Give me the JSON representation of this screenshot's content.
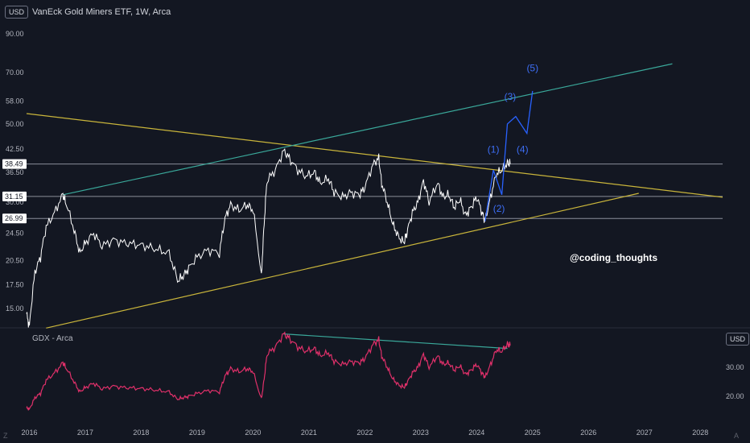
{
  "header": {
    "title": "VanEck Gold Miners ETF, 1W, Arca",
    "currency": "USD"
  },
  "sub_pane": {
    "title": "GDX - Arca",
    "currency": "USD"
  },
  "watermark": "@coding_thoughts",
  "corner_left": "Z",
  "corner_right": "A",
  "colors": {
    "price_line": "#ffffff",
    "yellow": "#c9b53b",
    "teal": "#3aa89a",
    "wave": "#2962ff",
    "sub_line": "#e0306a",
    "hline": "#8a8e99"
  },
  "chart_data": [
    {
      "type": "line",
      "name": "main",
      "title": "VanEck Gold Miners ETF, 1W, Arca",
      "xlabel": "",
      "ylabel": "USD",
      "x_ticks": [
        "2016",
        "2017",
        "2018",
        "2019",
        "2020",
        "2021",
        "2022",
        "2023",
        "2024",
        "2025",
        "2026",
        "2027",
        "2028"
      ],
      "y_scale": "log",
      "y_ticks": [
        "90.00",
        "70.00",
        "58.00",
        "50.00",
        "42.50",
        "36.50",
        "30.00",
        "24.50",
        "20.50",
        "17.50",
        "15.00"
      ],
      "ylim": [
        13.0,
        100
      ],
      "price_labels": [
        "38.49",
        "31.15",
        "26.99"
      ],
      "series_price": {
        "x": [
          2015.95,
          2016.0,
          2016.1,
          2016.2,
          2016.3,
          2016.45,
          2016.6,
          2016.65,
          2016.8,
          2016.9,
          2017.0,
          2017.15,
          2017.3,
          2017.5,
          2017.7,
          2017.9,
          2018.1,
          2018.3,
          2018.5,
          2018.65,
          2018.75,
          2018.85,
          2019.0,
          2019.2,
          2019.4,
          2019.5,
          2019.6,
          2019.75,
          2019.9,
          2020.0,
          2020.15,
          2020.2,
          2020.25,
          2020.4,
          2020.55,
          2020.65,
          2020.8,
          2020.95,
          2021.1,
          2021.2,
          2021.35,
          2021.45,
          2021.6,
          2021.75,
          2021.9,
          2022.0,
          2022.15,
          2022.25,
          2022.3,
          2022.4,
          2022.5,
          2022.6,
          2022.7,
          2022.75,
          2022.85,
          2022.95,
          2023.05,
          2023.15,
          2023.3,
          2023.4,
          2023.5,
          2023.6,
          2023.7,
          2023.8,
          2023.9,
          2024.0,
          2024.1,
          2024.15,
          2024.25,
          2024.35,
          2024.45,
          2024.55,
          2024.6
        ],
        "y": [
          14.5,
          13.3,
          19.0,
          21.0,
          25.5,
          28.0,
          31.5,
          30.0,
          25.0,
          21.5,
          23.0,
          24.5,
          22.5,
          23.5,
          23.0,
          22.8,
          22.5,
          22.0,
          21.5,
          18.0,
          18.5,
          19.5,
          21.0,
          22.0,
          21.5,
          27.0,
          29.5,
          28.5,
          29.5,
          28.5,
          18.3,
          26.0,
          34.5,
          37.0,
          42.0,
          40.0,
          37.0,
          35.5,
          36.5,
          34.0,
          35.0,
          32.0,
          31.0,
          32.0,
          31.5,
          33.0,
          38.5,
          40.0,
          34.0,
          30.0,
          26.0,
          24.0,
          23.0,
          24.5,
          28.0,
          30.0,
          34.5,
          30.0,
          34.0,
          31.0,
          31.5,
          29.0,
          30.5,
          27.5,
          29.0,
          31.0,
          28.0,
          26.5,
          31.0,
          36.0,
          37.0,
          38.8,
          38.5
        ]
      },
      "series_wave": {
        "labels": [
          "(1)",
          "(2)",
          "(3)",
          "(4)",
          "(5)"
        ],
        "x": [
          2024.15,
          2024.3,
          2024.45,
          2024.55,
          2024.7,
          2024.9,
          2025.0
        ],
        "y": [
          26.5,
          37.0,
          31.5,
          50.0,
          52.5,
          47.0,
          62.0
        ]
      },
      "levels": [
        38.49,
        31.15,
        26.99
      ],
      "trendlines": [
        {
          "color": "yellow",
          "x": [
            2015.95,
            2028.4
          ],
          "y": [
            53.5,
            31.0
          ]
        },
        {
          "color": "yellow",
          "x": [
            2016.3,
            2026.9
          ],
          "y": [
            13.2,
            31.8
          ]
        },
        {
          "color": "teal",
          "x": [
            2016.6,
            2027.5
          ],
          "y": [
            31.5,
            74.0
          ]
        }
      ]
    },
    {
      "type": "line",
      "name": "sub",
      "title": "GDX - Arca",
      "xlabel": "",
      "ylabel": "USD",
      "y_ticks": [
        "30.00",
        "20.00"
      ],
      "ylim": [
        14.0,
        44.0
      ],
      "series_sub": {
        "x": [
          2015.95,
          2016.0,
          2016.1,
          2016.2,
          2016.3,
          2016.45,
          2016.6,
          2016.65,
          2016.8,
          2016.9,
          2017.0,
          2017.15,
          2017.3,
          2017.5,
          2017.7,
          2017.9,
          2018.1,
          2018.3,
          2018.5,
          2018.65,
          2018.75,
          2018.85,
          2019.0,
          2019.2,
          2019.4,
          2019.5,
          2019.6,
          2019.75,
          2019.9,
          2020.0,
          2020.15,
          2020.2,
          2020.25,
          2020.4,
          2020.55,
          2020.65,
          2020.8,
          2020.95,
          2021.1,
          2021.2,
          2021.35,
          2021.45,
          2021.6,
          2021.75,
          2021.9,
          2022.0,
          2022.15,
          2022.25,
          2022.3,
          2022.4,
          2022.5,
          2022.6,
          2022.7,
          2022.75,
          2022.85,
          2022.95,
          2023.05,
          2023.15,
          2023.3,
          2023.4,
          2023.5,
          2023.6,
          2023.7,
          2023.8,
          2023.9,
          2024.0,
          2024.1,
          2024.15,
          2024.25,
          2024.35,
          2024.45,
          2024.55,
          2024.6
        ],
        "y": [
          16.0,
          15.5,
          19.5,
          21.0,
          25.5,
          28.0,
          31.5,
          30.0,
          25.0,
          21.5,
          23.0,
          24.5,
          22.5,
          23.5,
          23.0,
          22.8,
          22.5,
          22.0,
          21.5,
          19.0,
          19.5,
          20.0,
          21.0,
          22.0,
          21.5,
          27.0,
          29.5,
          28.5,
          29.5,
          28.5,
          19.0,
          26.0,
          34.5,
          37.0,
          41.5,
          40.0,
          37.0,
          35.5,
          36.5,
          34.0,
          35.0,
          32.0,
          31.0,
          32.0,
          31.5,
          33.0,
          38.0,
          39.5,
          34.0,
          30.0,
          26.0,
          24.0,
          23.0,
          24.5,
          28.0,
          30.0,
          34.5,
          30.0,
          34.0,
          31.0,
          31.5,
          29.0,
          30.5,
          27.5,
          29.0,
          31.0,
          28.0,
          26.5,
          31.0,
          36.0,
          35.5,
          38.0,
          37.5
        ]
      },
      "trendline": {
        "x": [
          2020.55,
          2024.55
        ],
        "y": [
          41.5,
          36.5
        ]
      }
    }
  ]
}
